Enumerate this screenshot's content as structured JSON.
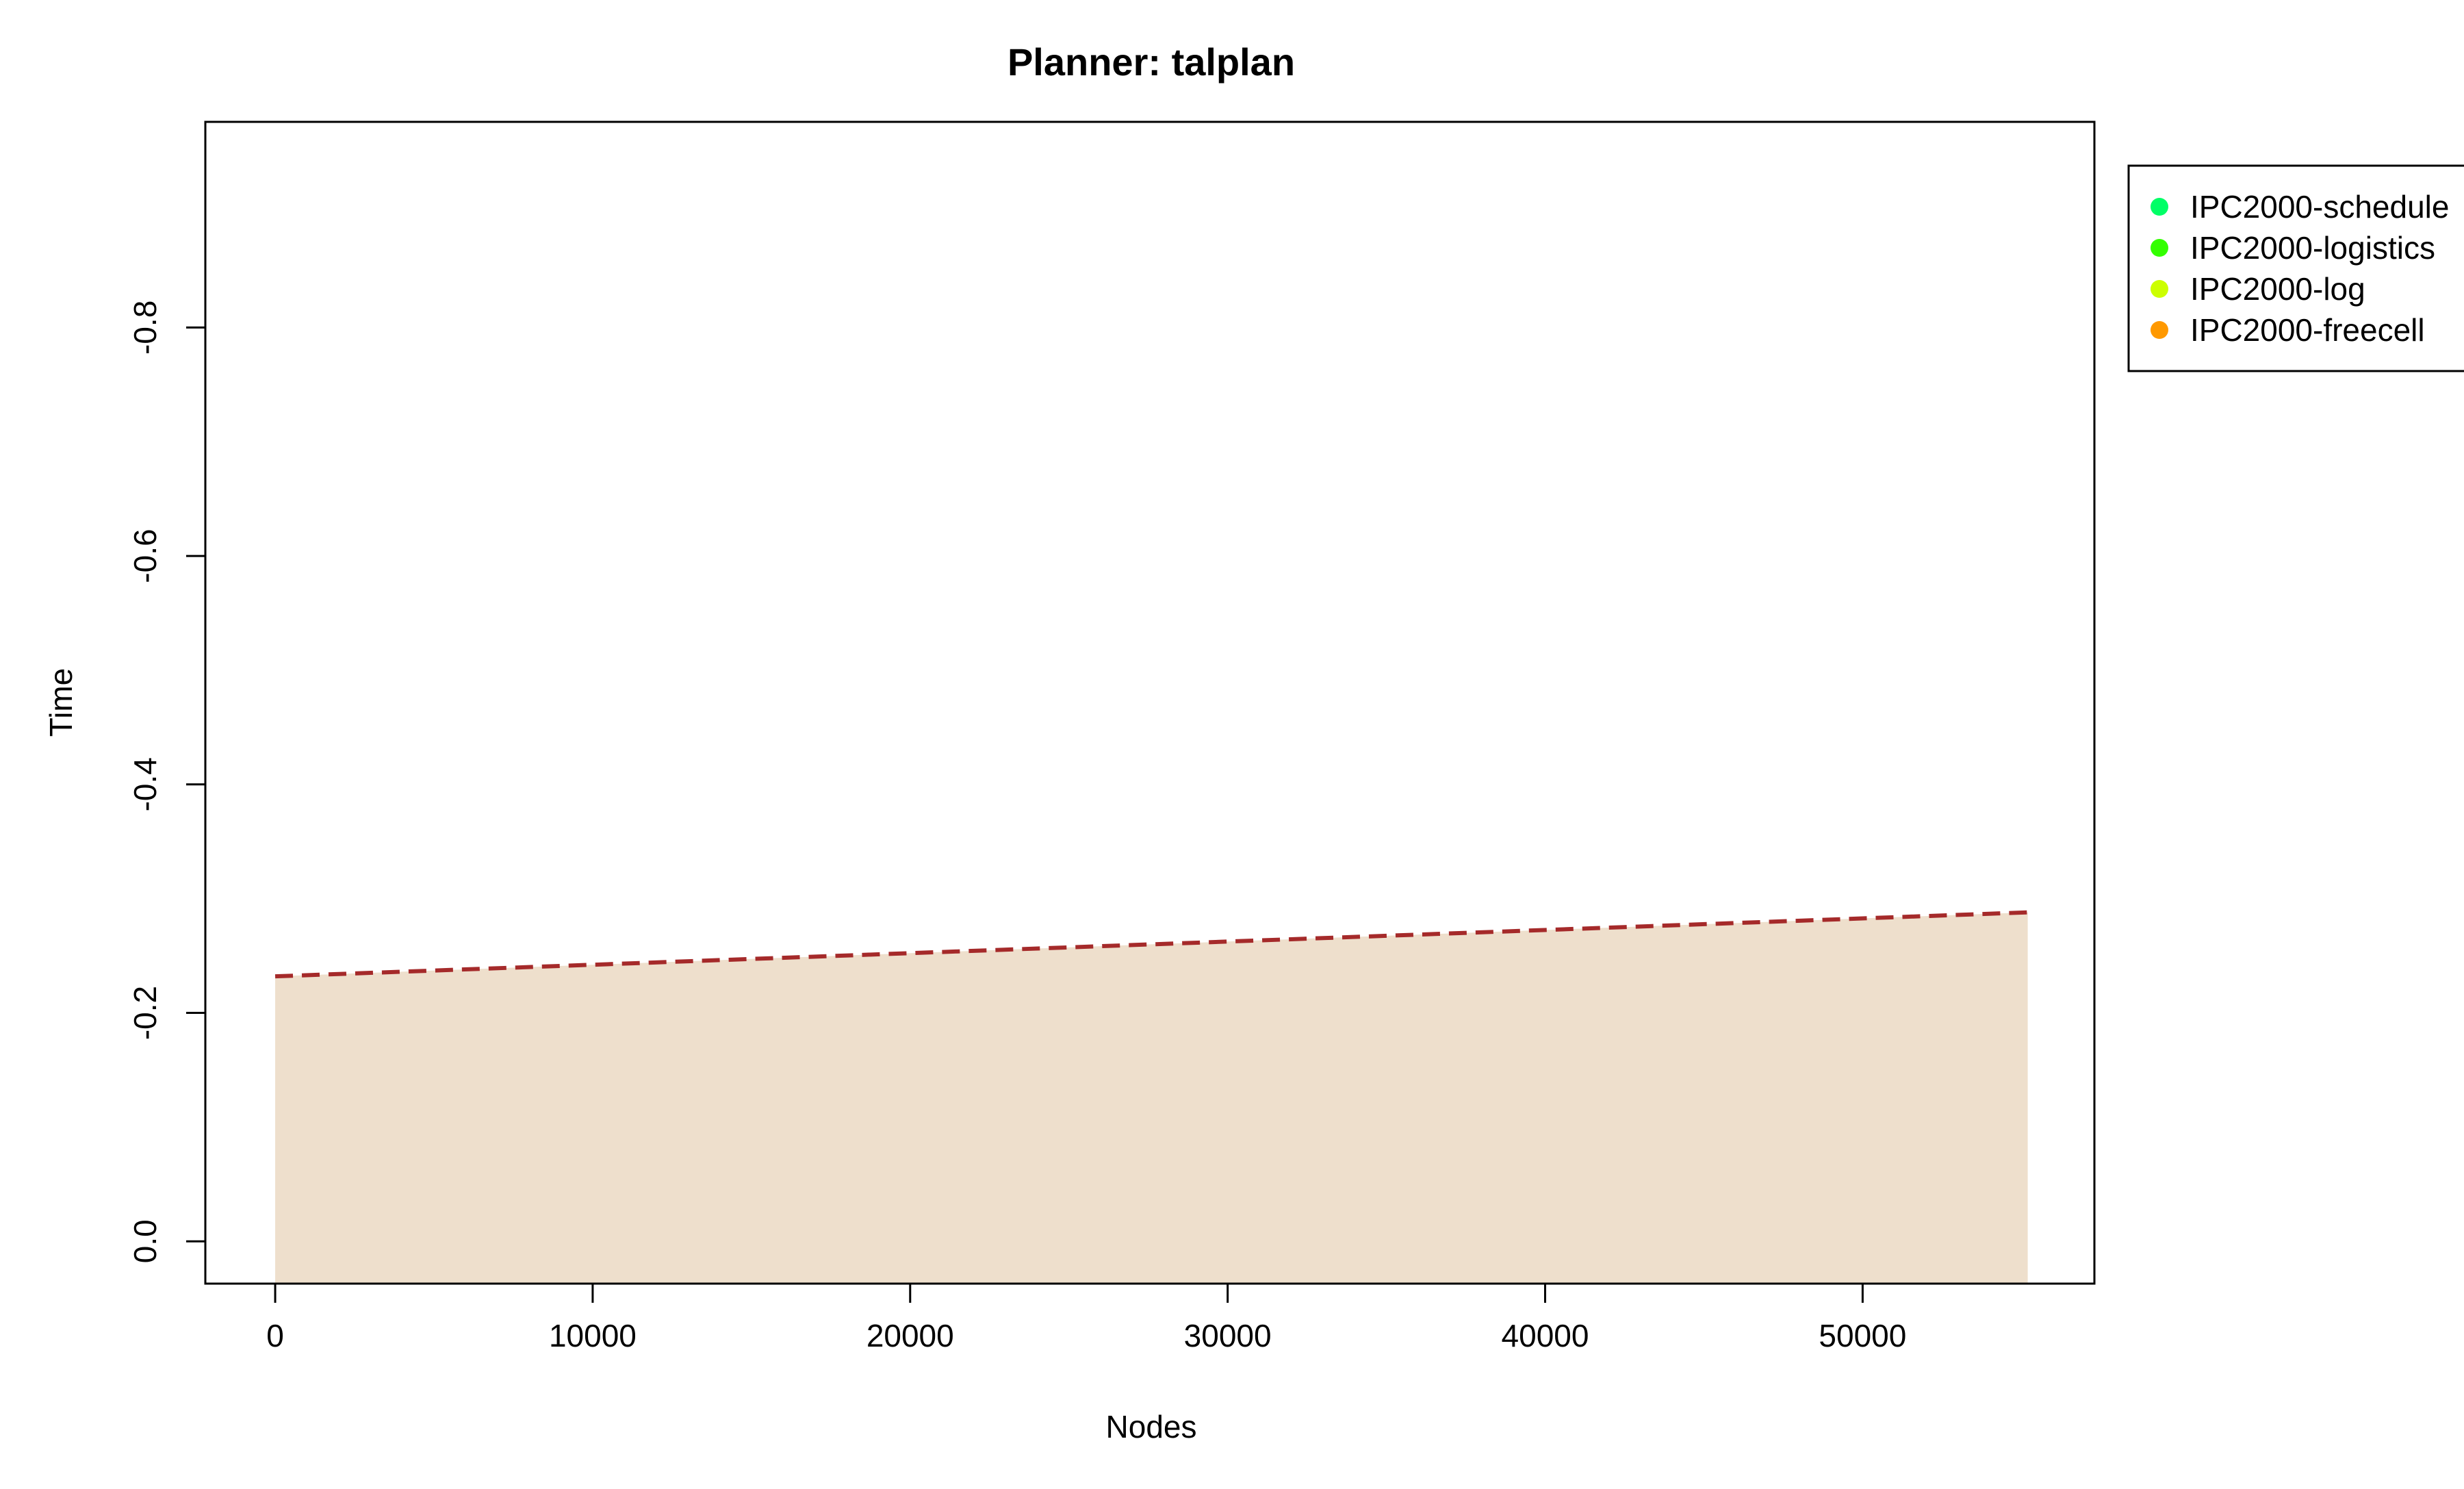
{
  "chart_data": {
    "type": "area",
    "title": "Planner: talplan",
    "xlabel": "Nodes",
    "ylabel": "Time",
    "xlim": [
      -2200,
      57300
    ],
    "ylim": [
      0.037,
      -0.98
    ],
    "y_axis_reversed": true,
    "x_ticks": [
      0,
      10000,
      20000,
      30000,
      40000,
      50000
    ],
    "x_tick_labels": [
      "0",
      "10000",
      "20000",
      "30000",
      "40000",
      "50000"
    ],
    "y_ticks": [
      0.0,
      -0.2,
      -0.4,
      -0.6,
      -0.8
    ],
    "y_tick_labels": [
      "0.0",
      "-0.2",
      "-0.4",
      "-0.6",
      "-0.8"
    ],
    "grid": false,
    "legend_position": "top-right, outside plot",
    "area": {
      "x": [
        0,
        55200
      ],
      "y_top": [
        -0.232,
        -0.288
      ],
      "y_bottom": 0.037,
      "color": "#EEDFCC"
    },
    "trend_line": {
      "x": [
        0,
        55200
      ],
      "y": [
        -0.232,
        -0.288
      ],
      "style": "dashed",
      "color": "#A52A2A"
    },
    "legend": [
      {
        "label": "IPC2000-schedule",
        "color": "#00FF66"
      },
      {
        "label": "IPC2000-logistics",
        "color": "#33FF00"
      },
      {
        "label": "IPC2000-log",
        "color": "#CCFF00"
      },
      {
        "label": "IPC2000-freecell",
        "color": "#FF9900"
      }
    ]
  }
}
